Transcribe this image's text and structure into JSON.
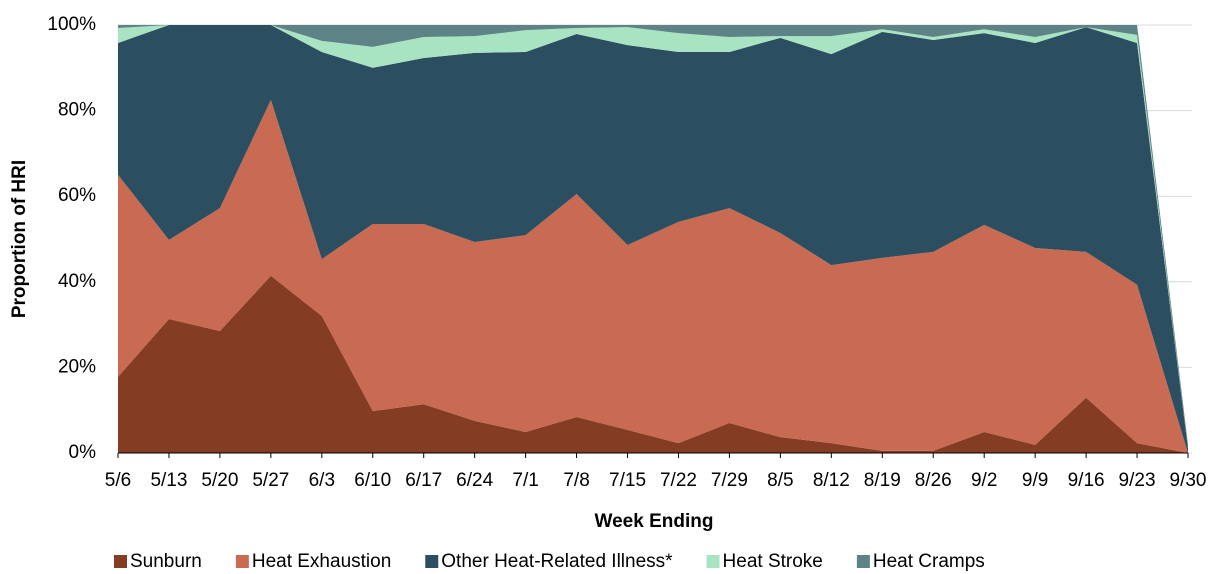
{
  "chart_data": {
    "type": "stacked-area",
    "x_label": "Week Ending",
    "y_label": "Proportion of HRI",
    "categories": [
      "5/6",
      "5/13",
      "5/20",
      "5/27",
      "6/3",
      "6/10",
      "6/17",
      "6/24",
      "7/1",
      "7/8",
      "7/15",
      "7/22",
      "7/29",
      "8/5",
      "8/12",
      "8/19",
      "8/26",
      "9/2",
      "9/9",
      "9/16",
      "9/23",
      "9/30"
    ],
    "series": [
      {
        "name": "Sunburn",
        "color": "#843c22",
        "values": [
          17.8,
          31.3,
          28.5,
          41.4,
          32,
          9.8,
          11.4,
          7.5,
          4.9,
          8.4,
          5.4,
          2.3,
          7,
          3.7,
          2.3,
          0.5,
          0.5,
          4.9,
          1.9,
          12.9,
          2.3,
          0
        ]
      },
      {
        "name": "Heat Exhaustion",
        "color": "#c96a53",
        "values": [
          47.2,
          18.5,
          28.7,
          41.1,
          13.3,
          43.7,
          42.1,
          41.8,
          46,
          52.1,
          43.2,
          51.7,
          50.2,
          47.7,
          41.6,
          45.1,
          46.5,
          48.4,
          46,
          34.1,
          37,
          0
        ]
      },
      {
        "name": "Other Heat-Related Illness*",
        "color": "#2b4f60",
        "values": [
          30.8,
          50.2,
          42.8,
          17.5,
          48.4,
          36.5,
          38.8,
          44.2,
          42.8,
          37.4,
          46.7,
          39.7,
          36.5,
          45.6,
          49.3,
          52.8,
          49.5,
          44.8,
          47.9,
          52.5,
          56.5,
          1
        ]
      },
      {
        "name": "Heat Stroke",
        "color": "#a9e4c2",
        "values": [
          3.5,
          0,
          0,
          0,
          2.6,
          4.9,
          4.9,
          3.9,
          5.1,
          1.4,
          4.2,
          4.4,
          3.5,
          0.4,
          4.2,
          0.6,
          0.7,
          0.9,
          1.4,
          0,
          1.9,
          0
        ]
      },
      {
        "name": "Heat Cramps",
        "color": "#5d8387",
        "values": [
          0.7,
          0,
          0,
          0,
          3.7,
          5.1,
          2.8,
          2.6,
          1.2,
          0.7,
          0.5,
          1.9,
          2.8,
          2.6,
          2.6,
          1,
          2.8,
          1,
          2.8,
          0.5,
          2.3,
          1
        ]
      }
    ],
    "ylim": [
      0,
      100
    ],
    "yticks": [
      {
        "value": 0,
        "label": "0%"
      },
      {
        "value": 20,
        "label": "20%"
      },
      {
        "value": 40,
        "label": "40%"
      },
      {
        "value": 60,
        "label": "60%"
      },
      {
        "value": 80,
        "label": "80%"
      },
      {
        "value": 100,
        "label": "100%"
      }
    ],
    "grid": true,
    "legend": "bottom"
  }
}
